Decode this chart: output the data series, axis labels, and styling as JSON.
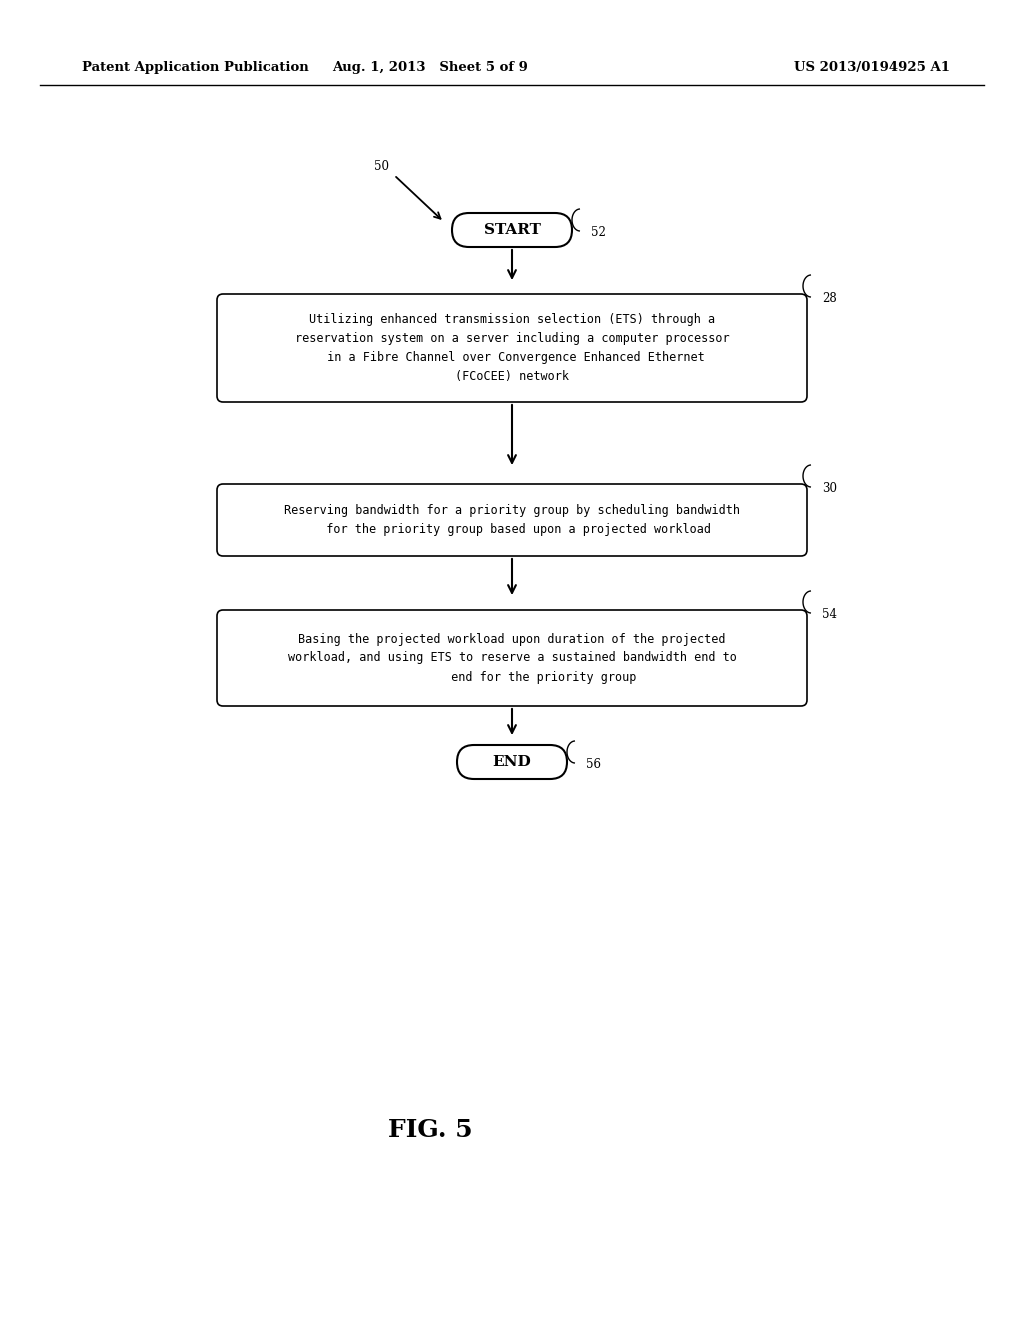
{
  "bg_color": "#ffffff",
  "header_left": "Patent Application Publication",
  "header_mid": "Aug. 1, 2013   Sheet 5 of 9",
  "header_right": "US 2013/0194925 A1",
  "fig_label": "FIG. 5",
  "start_label": "START",
  "end_label": "END",
  "box1_text": "Utilizing enhanced transmission selection (ETS) through a\nreservation system on a server including a computer processor\n in a Fibre Channel over Convergence Enhanced Ethernet\n(FCoCEE) network",
  "box2_text": "Reserving bandwidth for a priority group by scheduling bandwidth\n  for the priority group based upon a projected workload",
  "box3_text": "Basing the projected workload upon duration of the projected\nworkload, and using ETS to reserve a sustained bandwidth end to\n         end for the priority group",
  "ref_50": "50",
  "ref_52": "52",
  "ref_28": "28",
  "ref_30": "30",
  "ref_54": "54",
  "ref_56": "56"
}
